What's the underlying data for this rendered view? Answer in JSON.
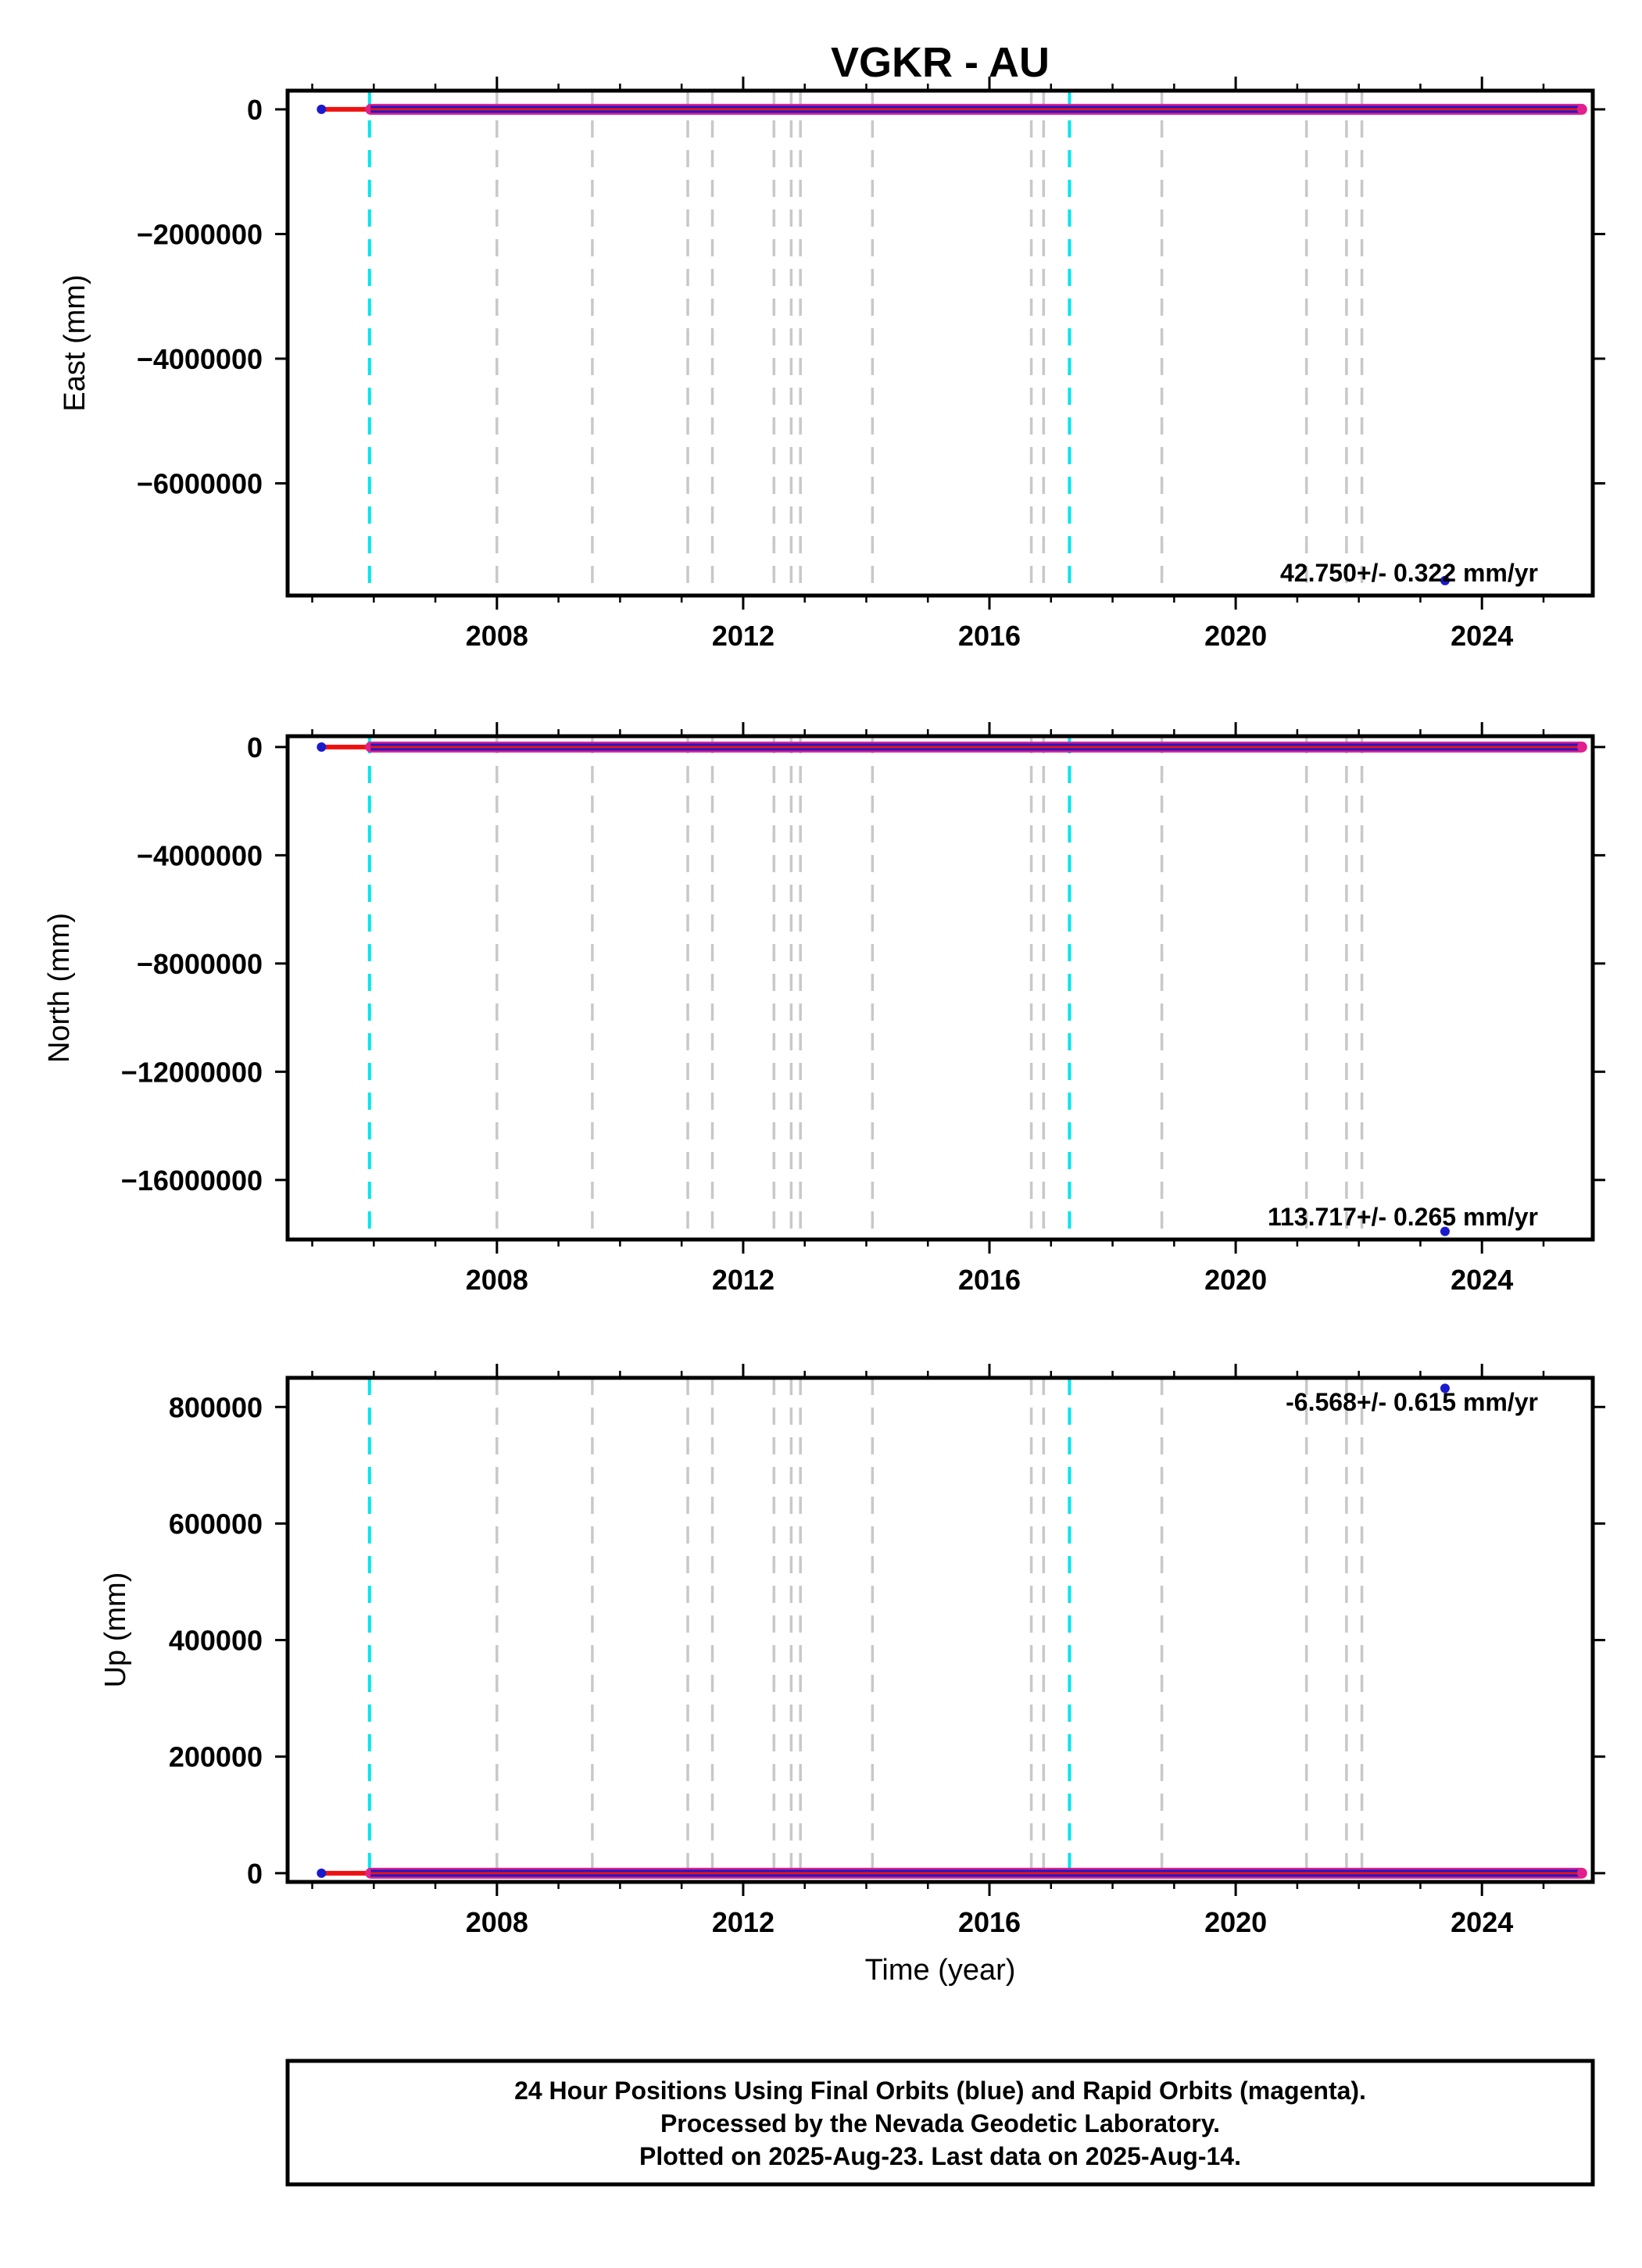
{
  "title": "VGKR - AU",
  "colors": {
    "final_orbits": "#1a1acc",
    "rapid_orbits": "#e0208c",
    "model_line": "#ee1111",
    "equipment_change": "#00e5ee",
    "other_event": "#c8c8c8"
  },
  "chart_data": [
    {
      "type": "scatter",
      "ylabel": "East (mm)",
      "xlim": [
        2004.6,
        2025.8
      ],
      "ylim": [
        -7800000,
        300000
      ],
      "y_ticks": [
        0,
        -2000000,
        -4000000,
        -6000000
      ],
      "y_tick_labels": [
        "0",
        "−2000000",
        "−4000000",
        "−6000000"
      ],
      "x_ticks": [
        2008,
        2012,
        2016,
        2020,
        2024
      ],
      "x_tick_labels": [
        "2008",
        "2012",
        "2016",
        "2020",
        "2024"
      ],
      "rate_label": "42.750+/- 0.322 mm/yr",
      "series_start": 2005.95,
      "series_end": 2025.62,
      "series_value": 0,
      "early_point": [
        2005.15,
        0
      ],
      "outlier": [
        2023.4,
        -7560000
      ],
      "grid": false,
      "legend": "none"
    },
    {
      "type": "scatter",
      "ylabel": "North (mm)",
      "xlim": [
        2004.6,
        2025.8
      ],
      "ylim": [
        -18200000,
        400000
      ],
      "y_ticks": [
        0,
        -4000000,
        -8000000,
        -12000000,
        -16000000
      ],
      "y_tick_labels": [
        "0",
        "−4000000",
        "−8000000",
        "−12000000",
        "−16000000"
      ],
      "x_ticks": [
        2008,
        2012,
        2016,
        2020,
        2024
      ],
      "x_tick_labels": [
        "2008",
        "2012",
        "2016",
        "2020",
        "2024"
      ],
      "rate_label": "113.717+/- 0.265 mm/yr",
      "series_start": 2005.95,
      "series_end": 2025.62,
      "series_value": 0,
      "early_point": [
        2005.15,
        0
      ],
      "outlier": [
        2023.4,
        -17900000
      ],
      "grid": false,
      "legend": "none"
    },
    {
      "type": "scatter",
      "ylabel": "Up (mm)",
      "xlim": [
        2004.6,
        2025.8
      ],
      "ylim": [
        -15000,
        850000
      ],
      "y_ticks": [
        0,
        200000,
        400000,
        600000,
        800000
      ],
      "y_tick_labels": [
        "0",
        "200000",
        "400000",
        "600000",
        "800000"
      ],
      "x_ticks": [
        2008,
        2012,
        2016,
        2020,
        2024
      ],
      "x_tick_labels": [
        "2008",
        "2012",
        "2016",
        "2020",
        "2024"
      ],
      "xlabel": "Time (year)",
      "rate_label": "-6.568+/- 0.615 mm/yr",
      "series_start": 2005.95,
      "series_end": 2025.62,
      "series_value": 0,
      "early_point": [
        2005.15,
        0
      ],
      "outlier": [
        2023.4,
        832000
      ],
      "grid": false,
      "legend": "none"
    }
  ],
  "equipment_change_years": [
    2005.93,
    2017.3
  ],
  "other_event_years": [
    2008.0,
    2009.55,
    2011.1,
    2011.5,
    2012.5,
    2012.78,
    2012.93,
    2014.1,
    2016.68,
    2016.88,
    2018.8,
    2021.15,
    2021.8,
    2022.05
  ],
  "footer": {
    "line1": "24 Hour Positions Using Final Orbits (blue) and Rapid Orbits (magenta).",
    "line2": "Processed by the Nevada Geodetic Laboratory.",
    "line3": "Plotted on 2025-Aug-23. Last data on 2025-Aug-14."
  }
}
